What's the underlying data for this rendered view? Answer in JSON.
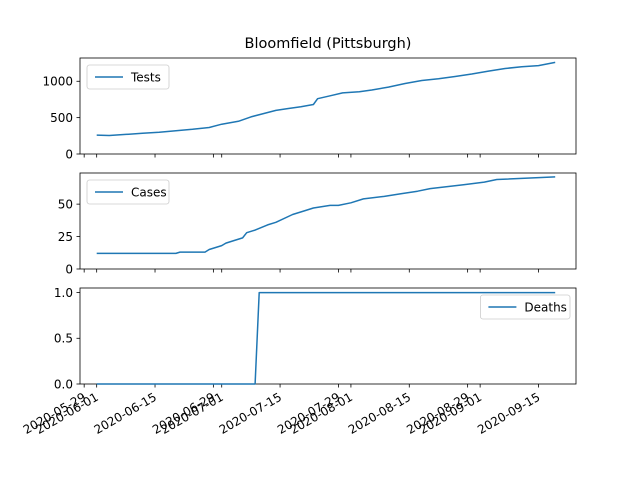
{
  "chart_data": {
    "type": "line",
    "title": "Bloomfield (Pittsburgh)",
    "shared_x": true,
    "x_tick_labels": [
      "2020-05-29",
      "2020-06-01",
      "2020-06-15",
      "2020-06-29",
      "2020-07-01",
      "2020-07-15",
      "2020-07-29",
      "2020-08-01",
      "2020-08-15",
      "2020-08-29",
      "2020-09-01",
      "2020-09-15"
    ],
    "xlim": [
      "2020-05-28",
      "2020-09-24"
    ],
    "line_color": "#1f77b4",
    "panels": [
      {
        "series": [
          {
            "name": "Tests",
            "x": [
              "2020-06-01",
              "2020-06-04",
              "2020-06-08",
              "2020-06-12",
              "2020-06-16",
              "2020-06-20",
              "2020-06-24",
              "2020-06-28",
              "2020-07-01",
              "2020-07-05",
              "2020-07-08",
              "2020-07-11",
              "2020-07-14",
              "2020-07-17",
              "2020-07-20",
              "2020-07-23",
              "2020-07-24",
              "2020-07-27",
              "2020-07-30",
              "2020-08-03",
              "2020-08-06",
              "2020-08-10",
              "2020-08-14",
              "2020-08-18",
              "2020-08-22",
              "2020-08-26",
              "2020-08-30",
              "2020-09-03",
              "2020-09-07",
              "2020-09-11",
              "2020-09-15",
              "2020-09-19"
            ],
            "y": [
              260,
              255,
              270,
              285,
              300,
              320,
              340,
              365,
              410,
              450,
              510,
              555,
              600,
              625,
              650,
              680,
              760,
              800,
              840,
              855,
              880,
              920,
              970,
              1010,
              1035,
              1065,
              1100,
              1140,
              1175,
              1200,
              1215,
              1260
            ]
          }
        ],
        "ylim": [
          0,
          1320
        ],
        "yticks": [
          0,
          500,
          1000
        ],
        "legend_loc": "upper-left"
      },
      {
        "series": [
          {
            "name": "Cases",
            "x": [
              "2020-06-01",
              "2020-06-12",
              "2020-06-20",
              "2020-06-21",
              "2020-06-27",
              "2020-06-28",
              "2020-07-01",
              "2020-07-02",
              "2020-07-04",
              "2020-07-06",
              "2020-07-07",
              "2020-07-09",
              "2020-07-12",
              "2020-07-14",
              "2020-07-18",
              "2020-07-21",
              "2020-07-23",
              "2020-07-27",
              "2020-07-29",
              "2020-08-01",
              "2020-08-04",
              "2020-08-09",
              "2020-08-13",
              "2020-08-17",
              "2020-08-20",
              "2020-08-28",
              "2020-09-02",
              "2020-09-05",
              "2020-09-19"
            ],
            "y": [
              12,
              12,
              12,
              13,
              13,
              15,
              18,
              20,
              22,
              24,
              28,
              30,
              34,
              36,
              42,
              45,
              47,
              49,
              49,
              51,
              54,
              56,
              58,
              60,
              62,
              65,
              67,
              69,
              71
            ]
          }
        ],
        "ylim": [
          0,
          74
        ],
        "yticks": [
          0,
          25,
          50
        ],
        "legend_loc": "upper-left"
      },
      {
        "series": [
          {
            "name": "Deaths",
            "x": [
              "2020-06-01",
              "2020-07-09",
              "2020-07-10",
              "2020-09-19"
            ],
            "y": [
              0,
              0,
              1,
              1
            ]
          }
        ],
        "ylim": [
          0,
          1.05
        ],
        "yticks": [
          0.0,
          0.5,
          1.0
        ],
        "legend_loc": "upper-right"
      }
    ]
  }
}
